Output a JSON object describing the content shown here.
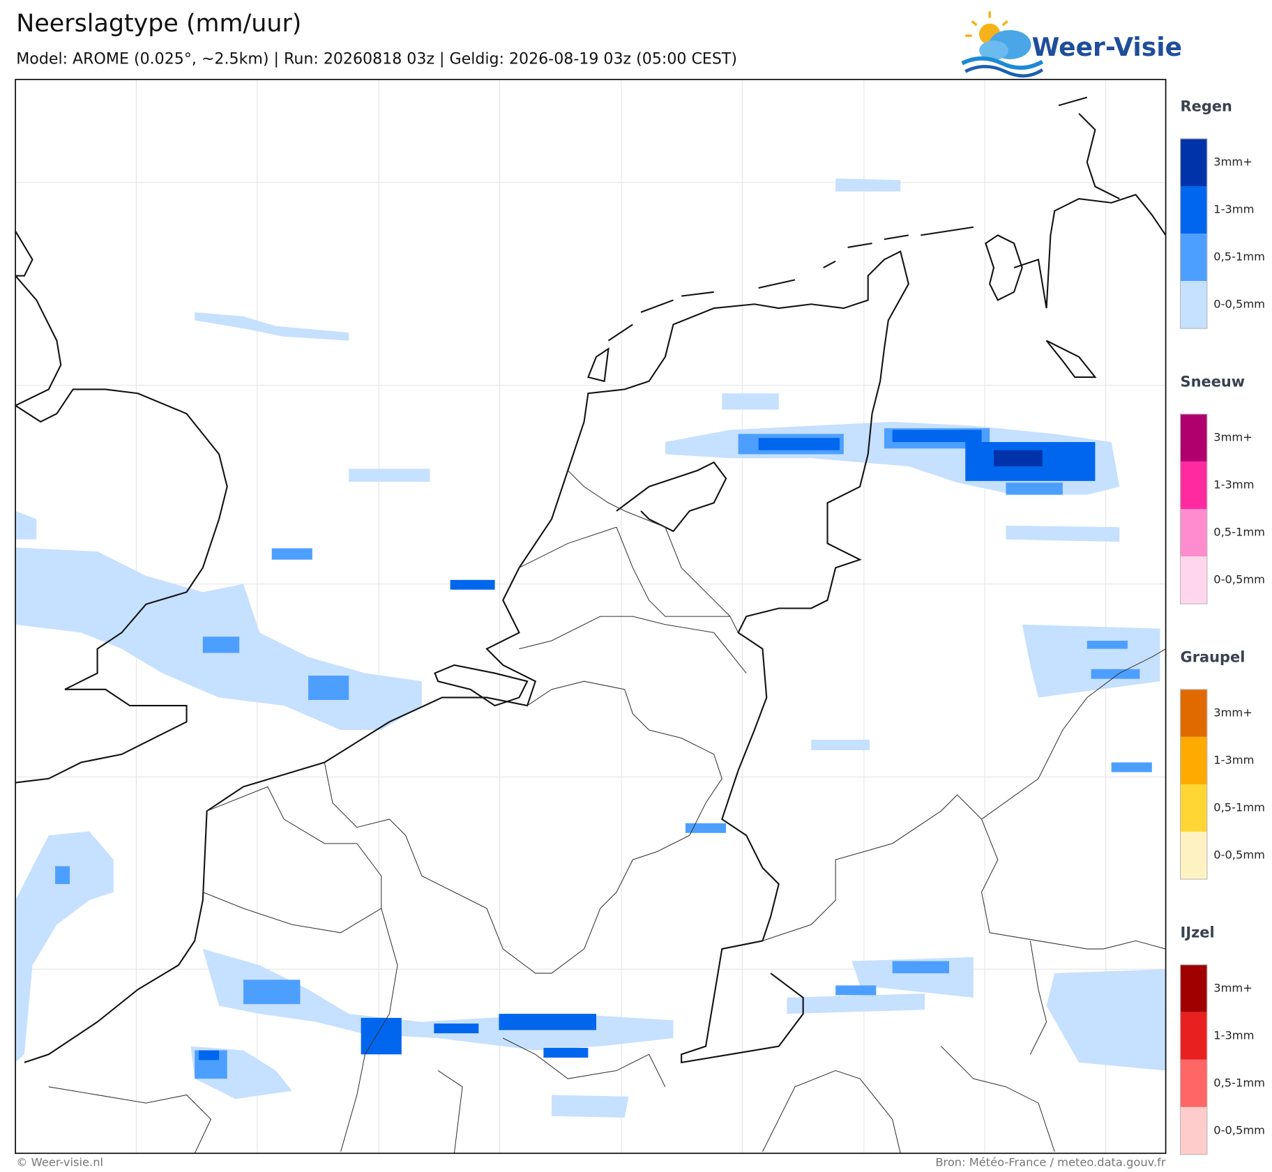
{
  "header": {
    "title": "Neerslagtype (mm/uur)",
    "subtitle": "Model: AROME (0.025°, ~2.5km)  |  Run: 20260818 03z  |  Geldig: 2026-08-19 03z (05:00 CEST)"
  },
  "logo": {
    "text": "Weer-Visie"
  },
  "legend": {
    "groups": [
      {
        "title": "Regen",
        "items": [
          {
            "label": "3mm+",
            "color": "#0033aa"
          },
          {
            "label": "1-3mm",
            "color": "#0066ee"
          },
          {
            "label": "0,5-1mm",
            "color": "#4d9fff"
          },
          {
            "label": "0-0,5mm",
            "color": "#c6e0ff"
          }
        ]
      },
      {
        "title": "Sneeuw",
        "items": [
          {
            "label": "3mm+",
            "color": "#b0006e"
          },
          {
            "label": "1-3mm",
            "color": "#ff2aa0"
          },
          {
            "label": "0,5-1mm",
            "color": "#ff8ccc"
          },
          {
            "label": "0-0,5mm",
            "color": "#ffd6ec"
          }
        ]
      },
      {
        "title": "Graupel",
        "items": [
          {
            "label": "3mm+",
            "color": "#e06a00"
          },
          {
            "label": "1-3mm",
            "color": "#ffaa00"
          },
          {
            "label": "0,5-1mm",
            "color": "#ffd633"
          },
          {
            "label": "0-0,5mm",
            "color": "#fff2c2"
          }
        ]
      },
      {
        "title": "IJzel",
        "items": [
          {
            "label": "3mm+",
            "color": "#a00000"
          },
          {
            "label": "1-3mm",
            "color": "#e82020"
          },
          {
            "label": "0,5-1mm",
            "color": "#ff6666"
          },
          {
            "label": "0-0,5mm",
            "color": "#ffcccc"
          }
        ]
      }
    ]
  },
  "footer": {
    "left": "© Weer-visie.nl",
    "right": "Bron: Météo-France / meteo.data.gouv.fr"
  }
}
